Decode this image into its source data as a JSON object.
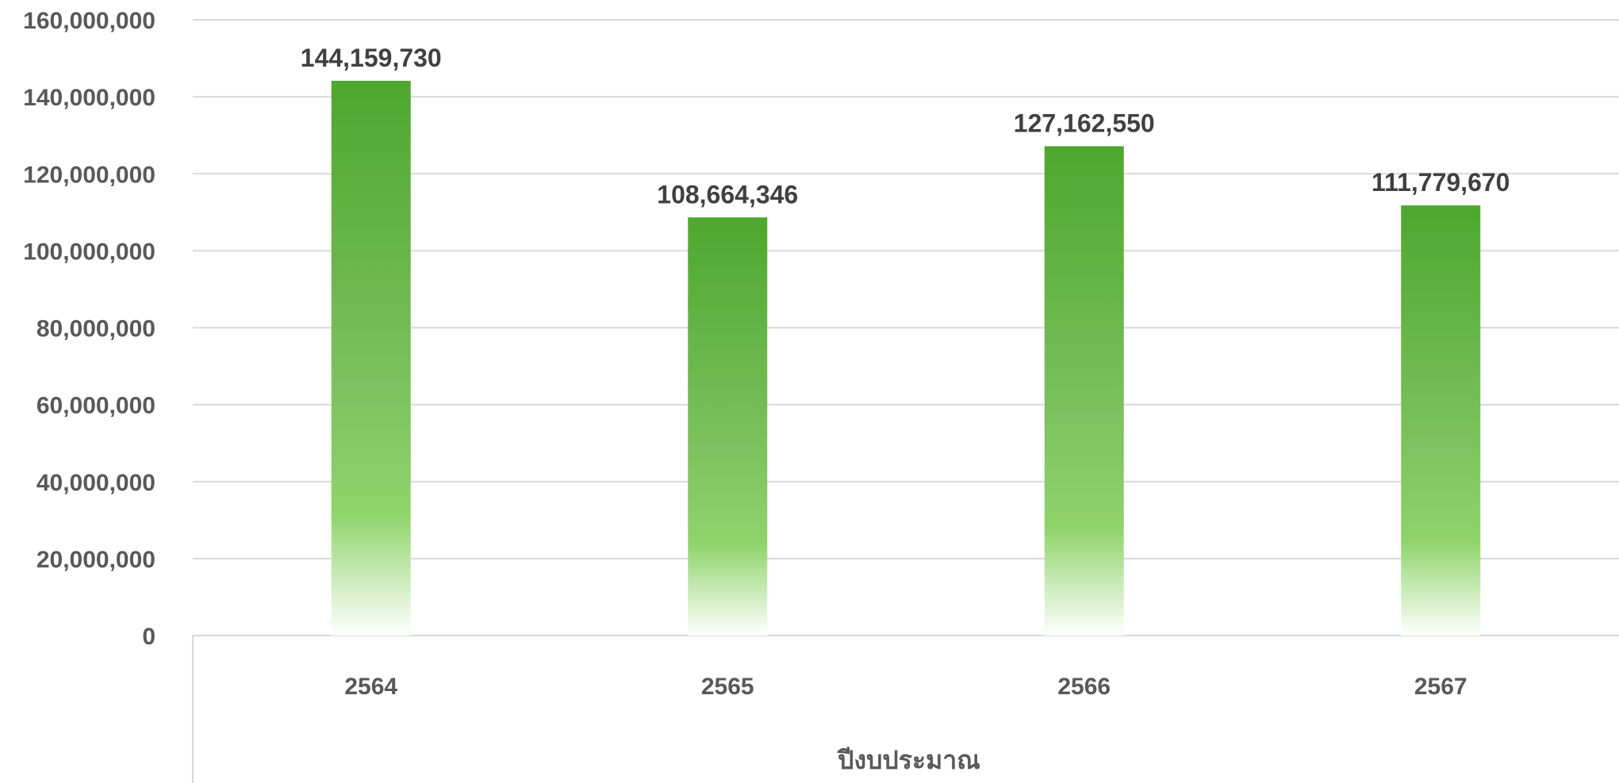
{
  "chart_data": {
    "type": "bar",
    "categories": [
      "2564",
      "2565",
      "2566",
      "2567"
    ],
    "values": [
      144159730,
      108664346,
      127162550,
      111779670
    ],
    "data_labels": [
      "144,159,730",
      "108,664,346",
      "127,162,550",
      "111,779,670"
    ],
    "title": "",
    "xlabel": "ปีงบประมาณ",
    "ylabel": "",
    "ylim": [
      0,
      160000000
    ],
    "ytick_values": [
      0,
      20000000,
      40000000,
      60000000,
      80000000,
      100000000,
      120000000,
      140000000,
      160000000
    ],
    "ytick_labels": [
      "0",
      "20,000,000",
      "40,000,000",
      "60,000,000",
      "80,000,000",
      "100,000,000",
      "120,000,000",
      "140,000,000",
      "160,000,000"
    ],
    "grid": true,
    "legend": "none",
    "colors": {
      "bar_top": "#4ea72e",
      "bar_mid": "#8fd46a",
      "bar_bottom": "#ffffff",
      "grid": "#d9d9d9",
      "axis": "#d9d9d9",
      "tick_text": "#595959",
      "label_text": "#404040"
    }
  }
}
